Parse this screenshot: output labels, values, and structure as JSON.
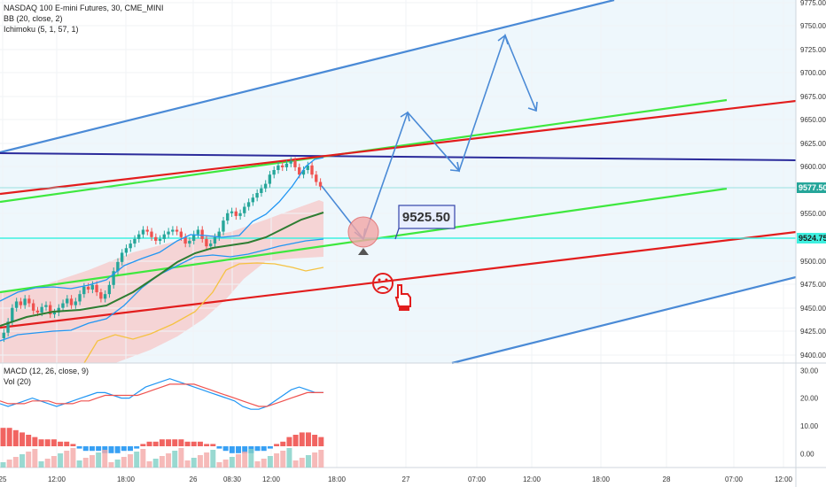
{
  "legend": {
    "title": "NASDAQ 100 E-mini Futures, 30, CME_MINI",
    "bb": "BB (20, close, 2)",
    "ichimoku": "Ichimoku (5, 1, 57, 1)",
    "macd": "MACD (12, 26, close, 9)",
    "vol": "Vol (20)"
  },
  "colors": {
    "up": "#26a69a",
    "down": "#ef5350",
    "bb": "#2196f3",
    "bb_mid": "#2e7d32",
    "channel_blue": "#4a8ad6",
    "channel_green": "#3ee83e",
    "channel_red": "#e21d1d",
    "horizontal": "#2b2b9b",
    "cyan": "#3ff0e0",
    "ichimoku_lead": "#f5c242"
  },
  "chart_data": [
    {
      "type": "candlestick",
      "panel": "price",
      "title": "NASDAQ 100 E-mini Futures, 30, CME_MINI",
      "y_ticks": [
        "9775.00",
        "9750.00",
        "9725.00",
        "9700.00",
        "9675.00",
        "9650.00",
        "9625.00",
        "9600.00",
        "9550.00",
        "9500.00",
        "9475.00",
        "9450.00",
        "9425.00",
        "9400.00"
      ],
      "ylim": [
        9385,
        9780
      ],
      "x_ticks": [
        "25",
        "12:00",
        "18:00",
        "26",
        "08:30",
        "12:00",
        "18:00",
        "27",
        "07:00",
        "12:00",
        "18:00",
        "28",
        "07:00",
        "12:00"
      ],
      "last_price_label": "9577.50",
      "cyan_level_label": "9524.75",
      "callout": "9525.50",
      "candles_close_start": 9418,
      "candle_count": 76,
      "closes": [
        9418,
        9430,
        9445,
        9452,
        9448,
        9455,
        9450,
        9442,
        9440,
        9446,
        9448,
        9438,
        9440,
        9445,
        9450,
        9455,
        9448,
        9452,
        9460,
        9468,
        9465,
        9470,
        9462,
        9455,
        9460,
        9470,
        9485,
        9495,
        9505,
        9510,
        9515,
        9520,
        9525,
        9530,
        9528,
        9522,
        9518,
        9520,
        9525,
        9528,
        9530,
        9528,
        9522,
        9515,
        9518,
        9525,
        9530,
        9520,
        9512,
        9515,
        9522,
        9528,
        9540,
        9548,
        9550,
        9545,
        9548,
        9555,
        9560,
        9565,
        9570,
        9575,
        9580,
        9590,
        9595,
        9600,
        9598,
        9602,
        9605,
        9598,
        9590,
        9595,
        9600,
        9590,
        9582,
        9577
      ],
      "projection_path": [
        9577.5,
        9525.5,
        9660,
        9595,
        9740,
        9665
      ]
    },
    {
      "type": "line",
      "panel": "macd",
      "title": "MACD (12, 26, close, 9)",
      "y_ticks": [
        "30.00",
        "20.00",
        "10.00",
        "0.00"
      ],
      "ylim": [
        -5,
        32
      ],
      "series": [
        {
          "name": "",
          "values": [
            18,
            17,
            18,
            19,
            20,
            19,
            18,
            17,
            18,
            19,
            20,
            21,
            22,
            22,
            21,
            20,
            20,
            22,
            24,
            25,
            26,
            27,
            26,
            25,
            24,
            23,
            22,
            21,
            20,
            19,
            17,
            16,
            16,
            17,
            19,
            21,
            23,
            24,
            23,
            22,
            22
          ]
        },
        {
          "name": "",
          "values": [
            19,
            18,
            18,
            18,
            19,
            19,
            19,
            18,
            18,
            18,
            19,
            19,
            20,
            21,
            21,
            21,
            21,
            21,
            22,
            23,
            24,
            25,
            25,
            25,
            25,
            24,
            23,
            22,
            21,
            20,
            19,
            18,
            17,
            17,
            18,
            19,
            20,
            21,
            22,
            22,
            22
          ]
        }
      ]
    },
    {
      "type": "bar",
      "panel": "volume",
      "title": "Vol (20)",
      "values": [
        8,
        8,
        7,
        6,
        5,
        4,
        3,
        3,
        3,
        2,
        2,
        1,
        -1,
        -2,
        -2,
        -2,
        -3,
        -3,
        -3,
        -2,
        -2,
        -1,
        1,
        2,
        2,
        3,
        3,
        3,
        3,
        2,
        2,
        2,
        1,
        1,
        -1,
        -2,
        -3,
        -3,
        -3,
        -3,
        -2,
        -2,
        -1,
        1,
        2,
        4,
        5,
        6,
        6,
        5,
        4
      ]
    }
  ],
  "annotations": {
    "sad_face": "☹",
    "hand": "☝"
  }
}
